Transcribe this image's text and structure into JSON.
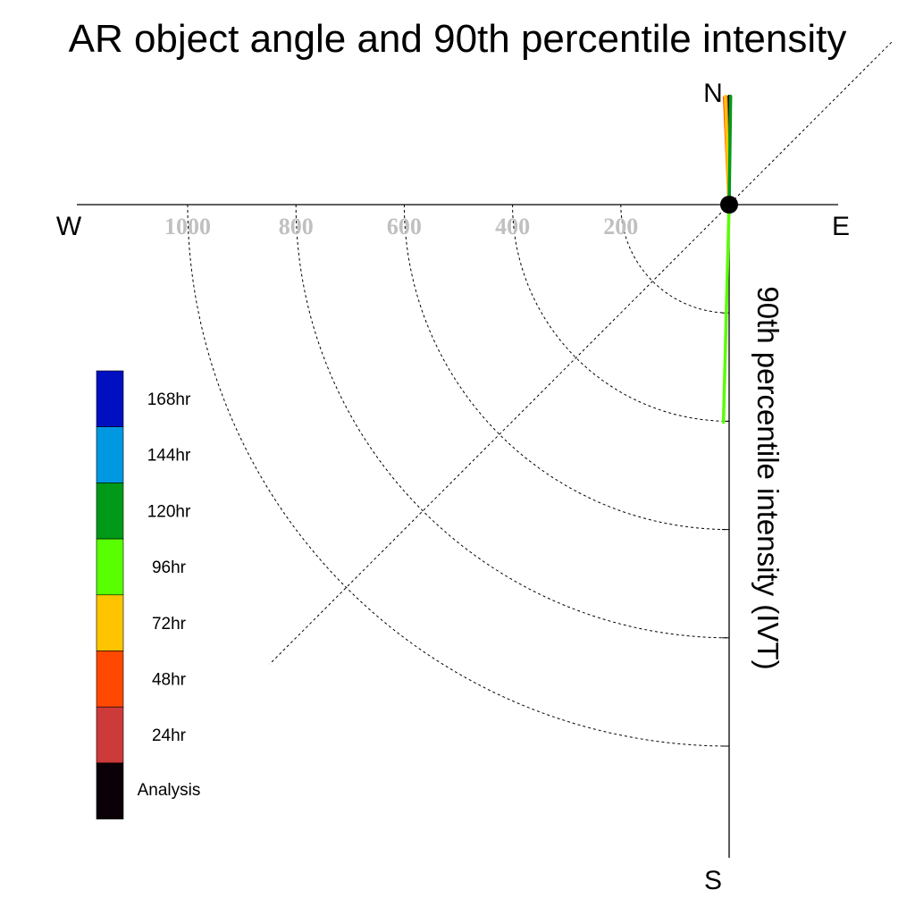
{
  "chart_data": {
    "type": "polar-vector",
    "title": "AR object angle and 90th percentile intensity",
    "directions": {
      "north": "N",
      "south": "S",
      "west": "W",
      "east": "E"
    },
    "radial_axis_label": "90th percentile intensity (IVT)",
    "radial_ticks": [
      200,
      400,
      600,
      800,
      1000
    ],
    "radial_tick_labels": [
      "200",
      "400",
      "600",
      "800",
      "1000"
    ],
    "rmax": 1200,
    "grid": true,
    "legend": {
      "placement": "left",
      "entries": [
        {
          "label": "168hr",
          "color": "#0010c0"
        },
        {
          "label": "144hr",
          "color": "#0098e0"
        },
        {
          "label": "120hr",
          "color": "#009a18"
        },
        {
          "label": "96hr",
          "color": "#58ff00"
        },
        {
          "label": "72hr",
          "color": "#ffc400"
        },
        {
          "label": "48hr",
          "color": "#ff4800"
        },
        {
          "label": "24hr",
          "color": "#cc3a3a"
        },
        {
          "label": "Analysis",
          "color": "#0c0008"
        }
      ]
    },
    "series": [
      {
        "name": "Analysis",
        "color": "#0c0008",
        "angle_deg": 0.0,
        "intensity": 200
      },
      {
        "name": "24hr",
        "color": "#cc3a3a",
        "angle_deg": -1.5,
        "intensity": 199
      },
      {
        "name": "48hr",
        "color": "#ff4800",
        "angle_deg": -2.5,
        "intensity": 198
      },
      {
        "name": "72hr",
        "color": "#ffc400",
        "angle_deg": -2.0,
        "intensity": 200
      },
      {
        "name": "96hr",
        "color": "#58ff00",
        "angle_deg": 181.5,
        "intensity": 402
      },
      {
        "name": "120hr",
        "color": "#009a18",
        "angle_deg": 0.8,
        "intensity": 200
      }
    ]
  }
}
